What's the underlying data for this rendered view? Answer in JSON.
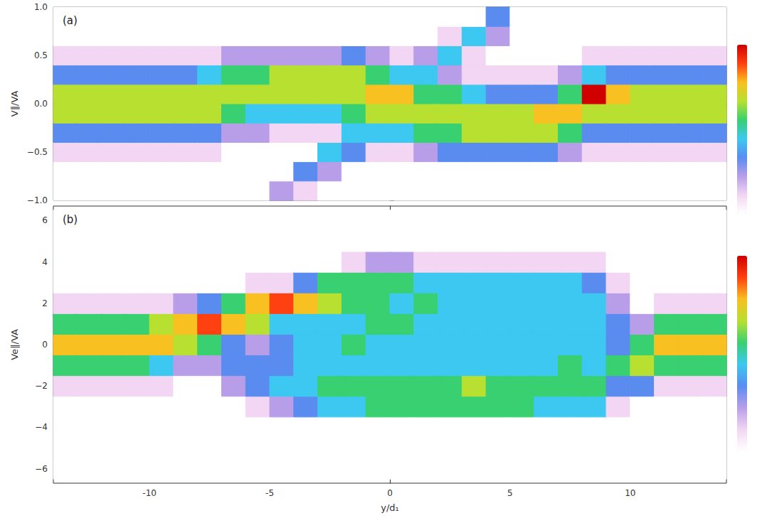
{
  "chart_data": [
    {
      "type": "heatmap",
      "title": "(a)",
      "ylabel": "V∥/VA",
      "xlim": [
        -14,
        14
      ],
      "xticks": [
        -10,
        -5,
        0,
        5,
        10
      ],
      "ylim": [
        -1,
        1
      ],
      "yticks": [
        {
          "value": -1,
          "label": "−1.0"
        },
        {
          "value": -0.5,
          "label": "−0.5"
        },
        {
          "value": 0,
          "label": "0.0"
        },
        {
          "value": 0.5,
          "label": "0.5"
        },
        {
          "value": 1,
          "label": "1.0"
        }
      ],
      "grid": false,
      "tick_labels": "y",
      "color_range": [
        0,
        9
      ],
      "x": [
        -13.5,
        -12.5,
        -11.5,
        -10.5,
        -9.5,
        -8.5,
        -7.5,
        -6.5,
        -5.5,
        -4.5,
        -3.5,
        -2.5,
        -1.5,
        -0.5,
        0.5,
        1.5,
        2.5,
        3.5,
        4.5,
        5.5,
        6.5,
        7.5,
        8.5,
        9.5,
        10.5,
        11.5,
        12.5,
        13.5
      ],
      "y": [
        -0.9,
        -0.7,
        -0.5,
        -0.3,
        -0.1,
        0.1,
        0.3,
        0.5,
        0.7,
        0.9
      ],
      "z": [
        [
          0,
          0,
          1,
          3,
          6,
          6,
          3,
          1,
          0,
          0
        ],
        [
          0,
          0,
          1,
          3,
          6,
          6,
          3,
          1,
          0,
          0
        ],
        [
          0,
          0,
          1,
          3,
          6,
          6,
          3,
          1,
          0,
          0
        ],
        [
          0,
          0,
          1,
          3,
          6,
          6,
          3,
          1,
          0,
          0
        ],
        [
          0,
          0,
          1,
          3,
          6,
          6,
          3,
          1,
          0,
          0
        ],
        [
          0,
          0,
          1,
          3,
          6,
          6,
          3,
          1,
          0,
          0
        ],
        [
          0,
          0,
          1,
          3,
          6,
          6,
          4,
          1,
          0,
          0
        ],
        [
          0,
          0,
          0,
          2,
          5,
          6,
          5,
          2,
          0,
          0
        ],
        [
          0,
          0,
          0,
          2,
          4,
          6,
          5,
          2,
          0,
          0
        ],
        [
          2,
          0,
          0,
          1,
          4,
          6,
          6,
          2,
          0,
          0
        ],
        [
          1,
          3,
          0,
          1,
          4,
          6,
          6,
          2,
          0,
          0
        ],
        [
          0,
          2,
          4,
          1,
          4,
          6,
          6,
          2,
          0,
          0
        ],
        [
          0,
          0,
          3,
          4,
          5,
          6,
          6,
          3,
          0,
          0
        ],
        [
          0,
          0,
          1,
          4,
          6,
          7,
          5,
          2,
          0,
          0
        ],
        [
          0,
          0,
          1,
          4,
          6,
          7,
          4,
          1,
          0,
          0
        ],
        [
          0,
          0,
          2,
          5,
          6,
          5,
          4,
          2,
          0,
          0
        ],
        [
          0,
          0,
          3,
          5,
          6,
          5,
          2,
          4,
          1,
          0
        ],
        [
          0,
          0,
          3,
          6,
          6,
          4,
          1,
          1,
          4,
          0
        ],
        [
          0,
          0,
          3,
          6,
          6,
          3,
          1,
          0,
          2,
          3
        ],
        [
          0,
          0,
          3,
          6,
          6,
          3,
          1,
          0,
          0,
          0
        ],
        [
          0,
          0,
          3,
          6,
          7,
          3,
          1,
          0,
          0,
          0
        ],
        [
          0,
          0,
          2,
          5,
          7,
          5,
          2,
          0,
          0,
          0
        ],
        [
          0,
          0,
          1,
          3,
          6,
          9,
          4,
          1,
          0,
          0
        ],
        [
          0,
          0,
          1,
          3,
          6,
          7,
          3,
          1,
          0,
          0
        ],
        [
          0,
          0,
          1,
          3,
          6,
          6,
          3,
          1,
          0,
          0
        ],
        [
          0,
          0,
          1,
          3,
          6,
          6,
          3,
          1,
          0,
          0
        ],
        [
          0,
          0,
          1,
          3,
          6,
          6,
          3,
          1,
          0,
          0
        ],
        [
          0,
          0,
          1,
          3,
          6,
          6,
          3,
          1,
          0,
          0
        ]
      ]
    },
    {
      "type": "heatmap",
      "title": "(b)",
      "xlabel": "y/d₁",
      "ylabel": "Ve∥/VA",
      "xlim": [
        -14,
        14
      ],
      "xticks": [
        -10,
        -5,
        0,
        5,
        10
      ],
      "ylim": [
        -6.7,
        6.7
      ],
      "yticks": [
        {
          "value": -6,
          "label": "−6"
        },
        {
          "value": -4,
          "label": "−4"
        },
        {
          "value": -2,
          "label": "−2"
        },
        0,
        2,
        4,
        6
      ],
      "grid": false,
      "color_range": [
        0,
        9
      ],
      "x": [
        -13.5,
        -12.5,
        -11.5,
        -10.5,
        -9.5,
        -8.5,
        -7.5,
        -6.5,
        -5.5,
        -4.5,
        -3.5,
        -2.5,
        -1.5,
        -0.5,
        0.5,
        1.5,
        2.5,
        3.5,
        4.5,
        5.5,
        6.5,
        7.5,
        8.5,
        9.5,
        10.5,
        11.5,
        12.5,
        13.5
      ],
      "y": [
        -6,
        -5,
        -4,
        -3,
        -2,
        -1,
        0,
        1,
        2,
        3,
        4,
        5,
        6
      ],
      "z": [
        [
          0,
          0,
          0,
          0,
          1,
          5,
          7,
          5,
          1,
          0,
          0,
          0,
          0
        ],
        [
          0,
          0,
          0,
          0,
          1,
          5,
          7,
          5,
          1,
          0,
          0,
          0,
          0
        ],
        [
          0,
          0,
          0,
          0,
          1,
          5,
          7,
          5,
          1,
          0,
          0,
          0,
          0
        ],
        [
          0,
          0,
          0,
          0,
          1,
          5,
          7,
          5,
          1,
          0,
          0,
          0,
          0
        ],
        [
          0,
          0,
          0,
          0,
          1,
          4,
          7,
          6,
          1,
          0,
          0,
          0,
          0
        ],
        [
          0,
          0,
          0,
          0,
          0,
          2,
          6,
          7,
          2,
          0,
          0,
          0,
          0
        ],
        [
          0,
          0,
          0,
          0,
          0,
          2,
          5,
          8,
          3,
          0,
          0,
          0,
          0
        ],
        [
          0,
          0,
          0,
          0,
          2,
          3,
          3,
          7,
          5,
          0,
          0,
          0,
          0
        ],
        [
          0,
          0,
          0,
          1,
          3,
          3,
          2,
          6,
          7,
          1,
          0,
          0,
          0
        ],
        [
          0,
          0,
          0,
          2,
          4,
          3,
          3,
          4,
          8,
          1,
          0,
          0,
          0
        ],
        [
          0,
          0,
          0,
          3,
          4,
          4,
          4,
          4,
          7,
          3,
          0,
          0,
          0
        ],
        [
          0,
          0,
          0,
          4,
          5,
          4,
          4,
          4,
          6,
          5,
          0,
          0,
          0
        ],
        [
          0,
          0,
          0,
          4,
          5,
          4,
          5,
          4,
          5,
          5,
          1,
          0,
          0
        ],
        [
          0,
          0,
          0,
          5,
          5,
          4,
          4,
          5,
          5,
          5,
          2,
          0,
          0
        ],
        [
          0,
          0,
          0,
          5,
          5,
          4,
          4,
          5,
          4,
          5,
          2,
          0,
          0
        ],
        [
          0,
          0,
          0,
          5,
          5,
          4,
          4,
          4,
          5,
          4,
          1,
          0,
          0
        ],
        [
          0,
          0,
          0,
          5,
          5,
          4,
          4,
          4,
          4,
          4,
          1,
          0,
          0
        ],
        [
          0,
          0,
          0,
          5,
          6,
          4,
          4,
          4,
          4,
          4,
          1,
          0,
          0
        ],
        [
          0,
          0,
          0,
          5,
          5,
          4,
          4,
          4,
          4,
          4,
          1,
          0,
          0
        ],
        [
          0,
          0,
          0,
          5,
          5,
          4,
          4,
          4,
          4,
          4,
          1,
          0,
          0
        ],
        [
          0,
          0,
          0,
          4,
          5,
          4,
          4,
          4,
          4,
          4,
          1,
          0,
          0
        ],
        [
          0,
          0,
          0,
          4,
          5,
          5,
          4,
          4,
          4,
          4,
          1,
          0,
          0
        ],
        [
          0,
          0,
          0,
          4,
          5,
          4,
          4,
          4,
          4,
          3,
          1,
          0,
          0
        ],
        [
          0,
          0,
          0,
          1,
          3,
          5,
          3,
          3,
          2,
          1,
          0,
          0,
          0
        ],
        [
          0,
          0,
          0,
          0,
          3,
          6,
          5,
          2,
          0,
          0,
          0,
          0,
          0
        ],
        [
          0,
          0,
          0,
          0,
          1,
          5,
          7,
          5,
          1,
          0,
          0,
          0,
          0
        ],
        [
          0,
          0,
          0,
          0,
          1,
          5,
          7,
          5,
          1,
          0,
          0,
          0,
          0
        ],
        [
          0,
          0,
          0,
          0,
          1,
          5,
          7,
          5,
          1,
          0,
          0,
          0,
          0
        ]
      ]
    }
  ]
}
